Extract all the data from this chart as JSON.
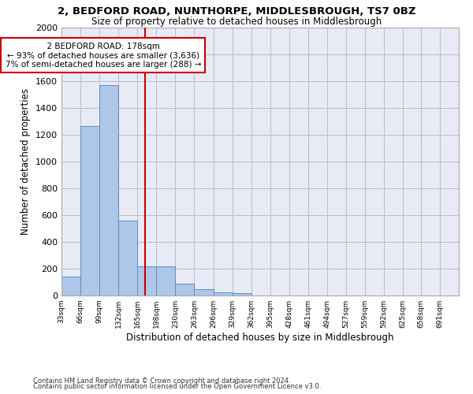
{
  "title1": "2, BEDFORD ROAD, NUNTHORPE, MIDDLESBROUGH, TS7 0BZ",
  "title2": "Size of property relative to detached houses in Middlesbrough",
  "xlabel": "Distribution of detached houses by size in Middlesbrough",
  "ylabel": "Number of detached properties",
  "footnote1": "Contains HM Land Registry data © Crown copyright and database right 2024.",
  "footnote2": "Contains public sector information licensed under the Open Government Licence v3.0.",
  "annotation_title": "2 BEDFORD ROAD: 178sqm",
  "annotation_line1": "← 93% of detached houses are smaller (3,636)",
  "annotation_line2": "7% of semi-detached houses are larger (288) →",
  "property_size": 178,
  "bin_edges": [
    33,
    66,
    99,
    132,
    165,
    198,
    231,
    264,
    297,
    330,
    363,
    396,
    429,
    462,
    495,
    528,
    561,
    594,
    627,
    658,
    691,
    724
  ],
  "bar_heights": [
    140,
    1265,
    1570,
    560,
    215,
    215,
    90,
    50,
    25,
    15,
    0,
    0,
    0,
    0,
    0,
    0,
    0,
    0,
    0,
    0,
    0
  ],
  "bin_width": 33,
  "bar_color": "#aec6e8",
  "bar_edge_color": "#5b8ec4",
  "vline_color": "#cc0000",
  "vline_x": 178,
  "ylim": [
    0,
    2000
  ],
  "yticks": [
    0,
    200,
    400,
    600,
    800,
    1000,
    1200,
    1400,
    1600,
    1800,
    2000
  ],
  "xlim_left": 33,
  "xlim_right": 724,
  "grid_color": "#bbbbcc",
  "background_color": "#e8eaf6",
  "tick_labels": [
    "33sqm",
    "66sqm",
    "99sqm",
    "132sqm",
    "165sqm",
    "198sqm",
    "230sqm",
    "263sqm",
    "296sqm",
    "329sqm",
    "362sqm",
    "395sqm",
    "428sqm",
    "461sqm",
    "494sqm",
    "527sqm",
    "559sqm",
    "592sqm",
    "625sqm",
    "658sqm",
    "691sqm"
  ]
}
